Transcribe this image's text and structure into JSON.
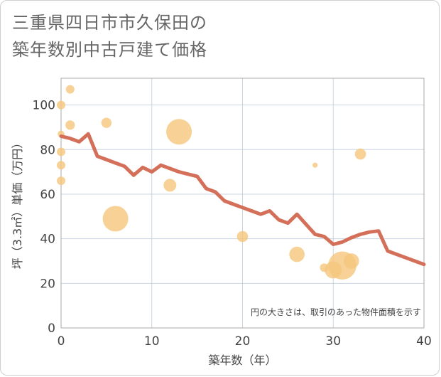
{
  "title_lines": [
    "三重県四日市市久保田の",
    "築年数別中古戸建て価格"
  ],
  "chart_data": {
    "type": "scatter",
    "xlabel": "築年数（年）",
    "ylabel": "坪（3.3㎡）単価（万円）",
    "xlim": [
      0,
      40
    ],
    "ylim": [
      0,
      112
    ],
    "xticks": [
      0,
      10,
      20,
      30,
      40
    ],
    "yticks": [
      0,
      20,
      40,
      60,
      80,
      100
    ],
    "grid": true,
    "annotation": "円の大きさは、取引のあった物件面積を示す",
    "bubble_color": "#f5c77e",
    "line_color": "#d4705a",
    "bubbles": [
      {
        "x": 0,
        "y": 100,
        "size": 1.0
      },
      {
        "x": 0,
        "y": 87,
        "size": 0.8
      },
      {
        "x": 0,
        "y": 79,
        "size": 1.0
      },
      {
        "x": 0,
        "y": 73,
        "size": 1.0
      },
      {
        "x": 0,
        "y": 66,
        "size": 1.0
      },
      {
        "x": 1,
        "y": 107,
        "size": 1.0
      },
      {
        "x": 1,
        "y": 91,
        "size": 1.1
      },
      {
        "x": 5,
        "y": 92,
        "size": 1.2
      },
      {
        "x": 6,
        "y": 49,
        "size": 3.0
      },
      {
        "x": 12,
        "y": 64,
        "size": 1.5
      },
      {
        "x": 13,
        "y": 88,
        "size": 3.0
      },
      {
        "x": 20,
        "y": 41,
        "size": 1.3
      },
      {
        "x": 26,
        "y": 33,
        "size": 1.8
      },
      {
        "x": 28,
        "y": 73,
        "size": 0.6
      },
      {
        "x": 29,
        "y": 27,
        "size": 1.0
      },
      {
        "x": 30,
        "y": 26,
        "size": 2.0
      },
      {
        "x": 31,
        "y": 28,
        "size": 3.3
      },
      {
        "x": 32,
        "y": 30,
        "size": 1.8
      },
      {
        "x": 33,
        "y": 78,
        "size": 1.3
      }
    ],
    "series": [
      {
        "x": [
          0,
          1,
          2,
          3,
          4,
          5,
          6,
          7,
          8,
          9,
          10,
          11,
          12,
          13,
          14,
          15,
          16,
          17,
          18,
          19,
          20,
          21,
          22,
          23,
          24,
          25,
          26,
          27,
          28,
          29,
          30,
          31,
          32,
          33,
          34,
          35,
          36,
          37,
          38,
          39,
          40
        ],
        "y": [
          86,
          85,
          83.5,
          87,
          77,
          75.5,
          74,
          72.5,
          68.5,
          72,
          70,
          73,
          71.5,
          70,
          69,
          68,
          62.5,
          61,
          57,
          55.5,
          54,
          52.5,
          51,
          52.5,
          48.5,
          47,
          51,
          46.5,
          42,
          41,
          37.5,
          38.5,
          40.5,
          42,
          43,
          43.5,
          34.5,
          33,
          31.5,
          30,
          28.5
        ]
      }
    ]
  }
}
